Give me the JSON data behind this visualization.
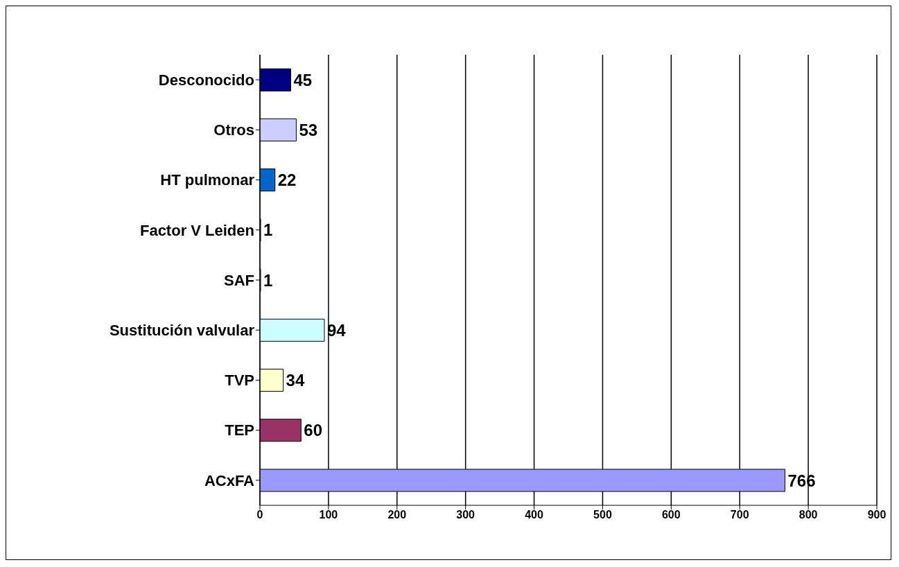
{
  "chart_data": {
    "type": "bar",
    "orientation": "horizontal",
    "categories": [
      "Desconocido",
      "Otros",
      "HT pulmonar",
      "Factor V Leiden",
      "SAF",
      "Sustitución valvular",
      "TVP",
      "TEP",
      "ACxFA"
    ],
    "values": [
      45,
      53,
      22,
      1,
      1,
      94,
      34,
      60,
      766
    ],
    "colors": [
      "#000080",
      "#ccccff",
      "#0066cc",
      "#660066",
      "#ff8080",
      "#ccffff",
      "#ffffcc",
      "#993366",
      "#9999ff"
    ],
    "xlim": [
      0,
      900
    ],
    "xticks": [
      0,
      100,
      200,
      300,
      400,
      500,
      600,
      700,
      800,
      900
    ],
    "grid": "x",
    "data_labels": true
  }
}
